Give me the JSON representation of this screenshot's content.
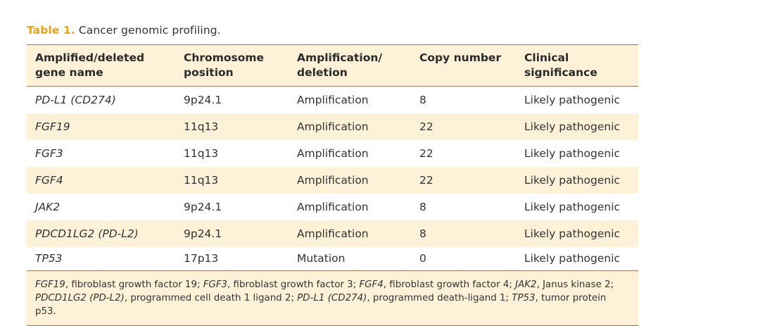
{
  "caption": {
    "label": "Table 1.",
    "text": "Cancer genomic profiling."
  },
  "table": {
    "headers": [
      [
        "Amplified/deleted",
        "gene name"
      ],
      [
        "Chromosome",
        "position"
      ],
      [
        "Amplification/",
        "deletion"
      ],
      [
        "Copy number",
        ""
      ],
      [
        "Clinical",
        "significance"
      ]
    ],
    "rows": [
      [
        "PD-L1 (CD274)",
        "9p24.1",
        "Amplification",
        "8",
        "Likely pathogenic"
      ],
      [
        "FGF19",
        "11q13",
        "Amplification",
        "22",
        "Likely pathogenic"
      ],
      [
        "FGF3",
        "11q13",
        "Amplification",
        "22",
        "Likely pathogenic"
      ],
      [
        "FGF4",
        "11q13",
        "Amplification",
        "22",
        "Likely pathogenic"
      ],
      [
        "JAK2",
        "9p24.1",
        "Amplification",
        "8",
        "Likely pathogenic"
      ],
      [
        "PDCD1LG2 (PD-L2)",
        "9p24.1",
        "Amplification",
        "8",
        "Likely pathogenic"
      ],
      [
        "TP53",
        "17p13",
        "Mutation",
        "0",
        "Likely pathogenic"
      ]
    ]
  },
  "footnote": {
    "segments": [
      {
        "t": "FGF19",
        "i": true
      },
      {
        "t": ", fibroblast growth factor 19; ",
        "i": false
      },
      {
        "t": "FGF3",
        "i": true
      },
      {
        "t": ", fibroblast growth factor 3; ",
        "i": false
      },
      {
        "t": "FGF4",
        "i": true
      },
      {
        "t": ", fibroblast growth factor 4; ",
        "i": false
      },
      {
        "t": "JAK2",
        "i": true
      },
      {
        "t": ", Janus kinase 2;",
        "i": false
      },
      {
        "br": true
      },
      {
        "t": "PDCD1LG2 (PD-L2)",
        "i": true
      },
      {
        "t": ", programmed cell death 1 ligand 2; ",
        "i": false
      },
      {
        "t": "PD-L1 (CD274)",
        "i": true
      },
      {
        "t": ", programmed death-ligand 1; ",
        "i": false
      },
      {
        "t": "TP53",
        "i": true
      },
      {
        "t": ", tumor protein p53.",
        "i": false
      }
    ]
  },
  "colors": {
    "accent": "#e8a21a",
    "shade": "#fdf1d8",
    "rule": "#8a7a5a"
  }
}
